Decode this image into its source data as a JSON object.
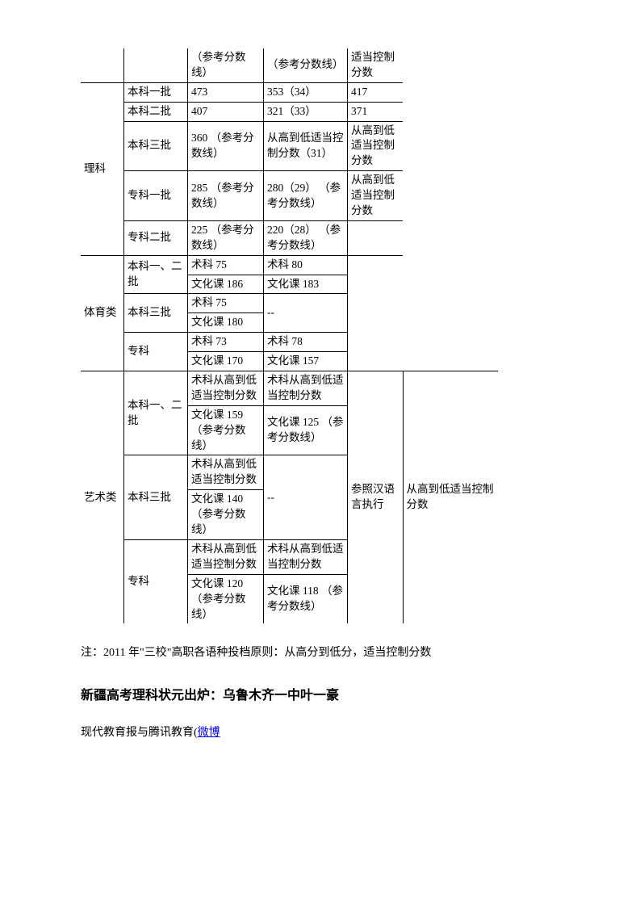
{
  "header_row": {
    "c3": "（参考分数线）",
    "c4": "（参考分数线）",
    "c5": "适当控制分数"
  },
  "r1": {
    "cat": "理科",
    "batch": "本科一批",
    "c3": "473",
    "c4": "353（34）",
    "c5": "417"
  },
  "r2": {
    "batch": "本科二批",
    "c3": "407",
    "c4": "321（33）",
    "c5": "371"
  },
  "r3": {
    "batch": "本科三批",
    "c3": "360 （参考分数线）",
    "c4": "从高到低适当控制分数（31）",
    "c5": "从高到低适当控制分数"
  },
  "r4": {
    "batch": "专科一批",
    "c3": "285 （参考分数线）",
    "c4": "280（29） （参考分数线）",
    "c5": "从高到低适当控制分数"
  },
  "r5": {
    "batch": "专科二批",
    "c3": "225 （参考分数线）",
    "c4": "220（28） （参考分数线）"
  },
  "s1": {
    "cat": "体育类",
    "batch": "本科一、二批",
    "a1": "术科 75",
    "a2": "术科 80",
    "b1": "文化课 186",
    "b2": "文化课 183"
  },
  "s2": {
    "batch": "本科三批",
    "a1": "术科 75",
    "a2": "--",
    "b1": "文化课 180"
  },
  "s3": {
    "batch": "专科",
    "a1": "术科 73",
    "a2": "术科 78",
    "b1": "文化课 170",
    "b2": "文化课 157"
  },
  "a1": {
    "cat": "艺术类",
    "batch": "本科一、二批",
    "a1": "术科从高到低适当控制分数",
    "a2": "术科从高到低适当控制分数",
    "b1": "文化课 159 （参考分数线）",
    "b2": "文化课 125 （参考分数线）",
    "side1": "参照汉语言执行",
    "side2": "从高到低适当控制分数"
  },
  "a2": {
    "batch": "本科三批",
    "a1": "术科从高到低适当控制分数",
    "a2": "--",
    "b1": "文化课 140 （参考分数线）"
  },
  "a3": {
    "batch": "专科",
    "a1": "术科从高到低适当控制分数",
    "a2": "术科从高到低适当控制分数",
    "b1": "文化课 120 （参考分数线）",
    "b2": "文化课 118 （参考分数线）"
  },
  "note": "注：2011 年\"三校\"高职各语种投档原则：从高分到低分，适当控制分数",
  "headline": "新疆高考理科状元出炉：乌鲁木齐一中叶一豪",
  "source_prefix": "现代教育报与腾讯教育(",
  "source_link": "微博"
}
